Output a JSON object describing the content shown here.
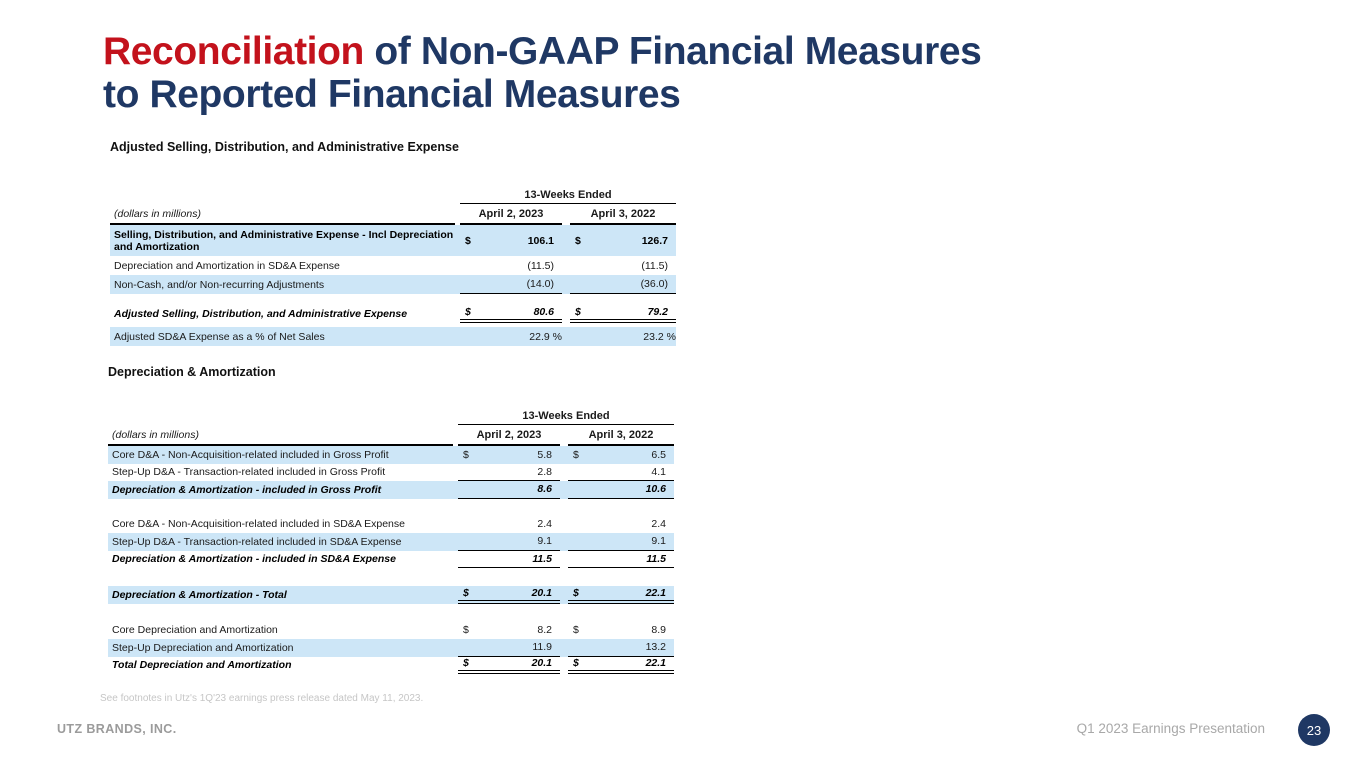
{
  "slide": {
    "title": {
      "highlight": "Reconciliation",
      "line1_rest": " of Non-GAAP Financial Measures",
      "line2": "to Reported Financial Measures"
    },
    "footnote": "See footnotes in Utz's 1Q'23 earnings press release dated May 11, 2023.",
    "footer": {
      "company": "UTZ BRANDS, INC.",
      "presentation": "Q1 2023 Earnings Presentation",
      "page_number": "23"
    },
    "colors": {
      "accent_red": "#C3121C",
      "navy": "#1F3864",
      "row_highlight_blue": "#CDE6F7"
    }
  },
  "tables": [
    {
      "section_title": "Adjusted Selling, Distribution, and Administrative Expense",
      "period_header": "13-Weeks Ended",
      "units_label": "(dollars in millions)",
      "columns": [
        "April 2, 2023",
        "April 3, 2022"
      ],
      "rows": [
        {
          "label": "Selling, Distribution, and Administrative Expense - Incl Depreciation and Amortization",
          "emphasis": "bold",
          "shaded": true,
          "tall": true,
          "values": [
            {
              "dollar": "$",
              "num": "106.1"
            },
            {
              "dollar": "$",
              "num": "126.7"
            }
          ]
        },
        {
          "label": "Depreciation and Amortization in SD&A Expense",
          "values": [
            {
              "num": "(11.5)"
            },
            {
              "num": "(11.5)"
            }
          ]
        },
        {
          "label": "Non-Cash, and/or Non-recurring Adjustments",
          "shaded": true,
          "underline": "single",
          "values": [
            {
              "num": "(14.0)"
            },
            {
              "num": "(36.0)"
            }
          ]
        },
        {
          "type": "spacer",
          "height": 10
        },
        {
          "label": "Adjusted Selling, Distribution, and Administrative Expense",
          "emphasis": "total",
          "underline": "double",
          "values": [
            {
              "dollar": "$",
              "num": "80.6"
            },
            {
              "dollar": "$",
              "num": "79.2"
            }
          ]
        },
        {
          "type": "spacer",
          "height": 4
        },
        {
          "label": "Adjusted SD&A Expense as a % of Net Sales",
          "shaded": true,
          "values": [
            {
              "num": "22.9 %"
            },
            {
              "num": "23.2 %"
            }
          ]
        }
      ]
    },
    {
      "section_title": "Depreciation & Amortization",
      "period_header": "13-Weeks Ended",
      "units_label": "(dollars in millions)",
      "columns": [
        "April 2, 2023",
        "April 3, 2022"
      ],
      "rows": [
        {
          "label": "Core D&A - Non-Acquisition-related included in Gross Profit",
          "shaded": true,
          "values": [
            {
              "dollar": "$",
              "num": "5.8"
            },
            {
              "dollar": "$",
              "num": "6.5"
            }
          ]
        },
        {
          "label": "Step-Up D&A - Transaction-related included in Gross Profit",
          "underline": "single",
          "values": [
            {
              "num": "2.8"
            },
            {
              "num": "4.1"
            }
          ]
        },
        {
          "label": "Depreciation & Amortization - included in Gross Profit",
          "emphasis": "total",
          "shaded": true,
          "underline": "single",
          "values": [
            {
              "num": "8.6"
            },
            {
              "num": "10.6"
            }
          ]
        },
        {
          "type": "spacer",
          "height": 17
        },
        {
          "label": "Core D&A - Non-Acquisition-related included in SD&A Expense",
          "values": [
            {
              "num": "2.4"
            },
            {
              "num": "2.4"
            }
          ]
        },
        {
          "label": "Step-Up D&A - Transaction-related included in SD&A Expense",
          "shaded": true,
          "underline": "single",
          "values": [
            {
              "num": "9.1"
            },
            {
              "num": "9.1"
            }
          ]
        },
        {
          "label": "Depreciation & Amortization - included in SD&A Expense",
          "emphasis": "total",
          "underline": "single",
          "values": [
            {
              "num": "11.5"
            },
            {
              "num": "11.5"
            }
          ]
        },
        {
          "type": "spacer",
          "height": 18
        },
        {
          "label": "Depreciation & Amortization - Total",
          "emphasis": "total",
          "shaded": true,
          "underline": "double",
          "values": [
            {
              "dollar": "$",
              "num": "20.1"
            },
            {
              "dollar": "$",
              "num": "22.1"
            }
          ]
        },
        {
          "type": "spacer",
          "height": 18
        },
        {
          "label": "Core Depreciation and Amortization",
          "values": [
            {
              "dollar": "$",
              "num": "8.2"
            },
            {
              "dollar": "$",
              "num": "8.9"
            }
          ]
        },
        {
          "label": "Step-Up Depreciation and Amortization",
          "shaded": true,
          "underline": "single",
          "values": [
            {
              "num": "11.9"
            },
            {
              "num": "13.2"
            }
          ]
        },
        {
          "label": "Total Depreciation and Amortization",
          "emphasis": "total",
          "underline": "double",
          "values": [
            {
              "dollar": "$",
              "num": "20.1"
            },
            {
              "dollar": "$",
              "num": "22.1"
            }
          ]
        }
      ]
    }
  ]
}
